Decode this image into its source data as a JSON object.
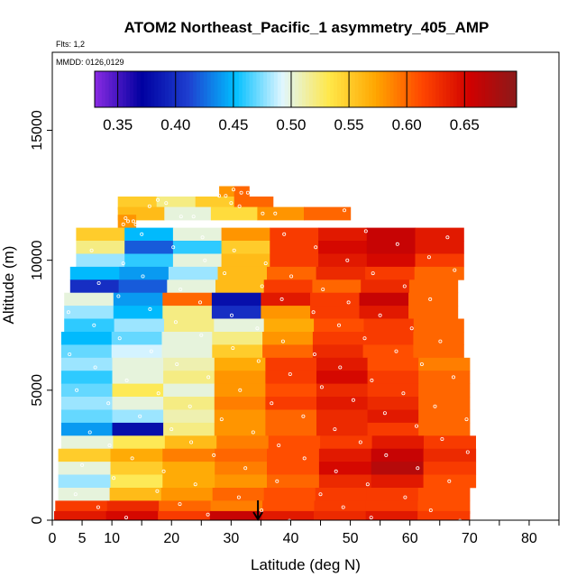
{
  "chart_data": {
    "type": "heatmap",
    "title": "ATOM2 Northeast_Pacific_1 asymmetry_405_AMP",
    "flights_label": "Flts: 1,2",
    "dates_label": "MMDD: 0126,0129",
    "xlabel": "Latitude (deg N)",
    "ylabel": "Altitude (m)",
    "xlim": [
      0,
      85
    ],
    "ylim": [
      0,
      18000
    ],
    "x_ticks": [
      0,
      5,
      10,
      20,
      30,
      40,
      50,
      60,
      70,
      80
    ],
    "y_ticks": [
      0,
      5000,
      10000,
      15000
    ],
    "colorbar": {
      "range": [
        0.33,
        0.695
      ],
      "ticks": [
        0.35,
        0.4,
        0.45,
        0.5,
        0.55,
        0.6,
        0.65
      ],
      "tick_labels": [
        "0.35",
        "0.40",
        "0.45",
        "0.50",
        "0.55",
        "0.60",
        "0.65"
      ],
      "colors": [
        "#8a2be2",
        "#0000a0",
        "#1e3fd0",
        "#00bfff",
        "#e0f6ff",
        "#ffe84a",
        "#ffa500",
        "#ff4500",
        "#d00000",
        "#8b1a1a"
      ]
    },
    "arrow_marker_latitude": 34.5,
    "series": [
      {
        "name": "asymmetry_405_AMP profile",
        "rows": [
          {
            "alt": 11500,
            "lat_min": 11,
            "lat_max": 14,
            "values": [
              0.58
            ]
          },
          {
            "alt": 11000,
            "lat_min": 4,
            "lat_max": 69,
            "values": [
              0.55,
              0.45,
              0.5,
              0.58,
              0.62,
              0.64,
              0.66,
              0.64
            ]
          },
          {
            "alt": 12600,
            "lat_min": 28,
            "lat_max": 33,
            "values": [
              0.58,
              0.6
            ]
          },
          {
            "alt": 12200,
            "lat_min": 11,
            "lat_max": 37,
            "values": [
              0.55,
              0.52,
              0.55,
              0.6
            ]
          },
          {
            "alt": 11800,
            "lat_min": 11,
            "lat_max": 50,
            "values": [
              0.56,
              0.5,
              0.54,
              0.58,
              0.6
            ]
          },
          {
            "alt": 10500,
            "lat_min": 4,
            "lat_max": 69,
            "values": [
              0.52,
              0.42,
              0.46,
              0.55,
              0.62,
              0.65,
              0.66,
              0.64
            ]
          },
          {
            "alt": 10000,
            "lat_min": 4,
            "lat_max": 69,
            "values": [
              0.48,
              0.46,
              0.5,
              0.56,
              0.62,
              0.64,
              0.65,
              0.62
            ]
          },
          {
            "alt": 9500,
            "lat_min": 3,
            "lat_max": 69,
            "values": [
              0.45,
              0.44,
              0.48,
              0.56,
              0.6,
              0.63,
              0.62,
              0.6
            ]
          },
          {
            "alt": 9000,
            "lat_min": 3,
            "lat_max": 68,
            "values": [
              0.4,
              0.42,
              0.5,
              0.56,
              0.62,
              0.6,
              0.63,
              0.6
            ]
          },
          {
            "alt": 8500,
            "lat_min": 2,
            "lat_max": 68,
            "values": [
              0.5,
              0.44,
              0.6,
              0.38,
              0.64,
              0.62,
              0.66,
              0.6
            ]
          },
          {
            "alt": 8000,
            "lat_min": 2,
            "lat_max": 68,
            "values": [
              0.48,
              0.45,
              0.52,
              0.4,
              0.58,
              0.62,
              0.64,
              0.6
            ]
          },
          {
            "alt": 7500,
            "lat_min": 2,
            "lat_max": 69,
            "values": [
              0.46,
              0.48,
              0.52,
              0.5,
              0.57,
              0.61,
              0.62,
              0.6
            ]
          },
          {
            "alt": 7000,
            "lat_min": 1.5,
            "lat_max": 69,
            "values": [
              0.45,
              0.47,
              0.5,
              0.52,
              0.58,
              0.62,
              0.62,
              0.6
            ]
          },
          {
            "alt": 6500,
            "lat_min": 1.5,
            "lat_max": 69,
            "values": [
              0.47,
              0.49,
              0.5,
              0.55,
              0.6,
              0.63,
              0.61,
              0.6
            ]
          },
          {
            "alt": 6000,
            "lat_min": 1.5,
            "lat_max": 70,
            "values": [
              0.48,
              0.5,
              0.51,
              0.57,
              0.62,
              0.64,
              0.61,
              0.59
            ]
          },
          {
            "alt": 5500,
            "lat_min": 1.5,
            "lat_max": 70,
            "values": [
              0.46,
              0.5,
              0.52,
              0.58,
              0.62,
              0.65,
              0.62,
              0.6
            ]
          },
          {
            "alt": 5000,
            "lat_min": 1.5,
            "lat_max": 70,
            "values": [
              0.47,
              0.53,
              0.5,
              0.58,
              0.61,
              0.63,
              0.62,
              0.6
            ]
          },
          {
            "alt": 4500,
            "lat_min": 1.5,
            "lat_max": 70,
            "values": [
              0.48,
              0.5,
              0.52,
              0.59,
              0.62,
              0.64,
              0.63,
              0.6
            ]
          },
          {
            "alt": 4000,
            "lat_min": 1.5,
            "lat_max": 70,
            "values": [
              0.47,
              0.48,
              0.51,
              0.58,
              0.6,
              0.63,
              0.64,
              0.6
            ]
          },
          {
            "alt": 3500,
            "lat_min": 1.5,
            "lat_max": 70,
            "values": [
              0.44,
              0.38,
              0.52,
              0.58,
              0.6,
              0.63,
              0.62,
              0.6
            ]
          },
          {
            "alt": 3000,
            "lat_min": 1.5,
            "lat_max": 71,
            "values": [
              0.5,
              0.53,
              0.56,
              0.59,
              0.61,
              0.62,
              0.64,
              0.62
            ]
          },
          {
            "alt": 2500,
            "lat_min": 1,
            "lat_max": 71,
            "values": [
              0.55,
              0.57,
              0.59,
              0.6,
              0.61,
              0.64,
              0.66,
              0.63
            ]
          },
          {
            "alt": 2000,
            "lat_min": 1,
            "lat_max": 71,
            "values": [
              0.5,
              0.55,
              0.57,
              0.59,
              0.61,
              0.65,
              0.67,
              0.62
            ]
          },
          {
            "alt": 1500,
            "lat_min": 1,
            "lat_max": 71,
            "values": [
              0.48,
              0.53,
              0.57,
              0.58,
              0.6,
              0.63,
              0.64,
              0.61
            ]
          },
          {
            "alt": 1000,
            "lat_min": 1,
            "lat_max": 70,
            "values": [
              0.5,
              0.56,
              0.58,
              0.6,
              0.61,
              0.62,
              0.62,
              0.61
            ]
          },
          {
            "alt": 500,
            "lat_min": 0.5,
            "lat_max": 70,
            "values": [
              0.62,
              0.63,
              0.6,
              0.59,
              0.61,
              0.62,
              0.62,
              0.61
            ]
          },
          {
            "alt": 100,
            "lat_min": 0.3,
            "lat_max": 70,
            "values": [
              0.64,
              0.65,
              0.62,
              0.66,
              0.64,
              0.63,
              0.64,
              0.62
            ]
          }
        ]
      }
    ]
  }
}
